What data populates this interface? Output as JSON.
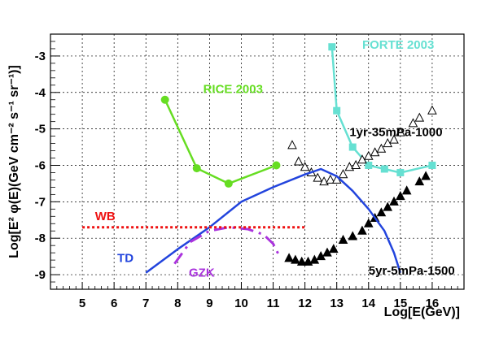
{
  "chart_data": {
    "type": "line",
    "title": "",
    "xlabel": "Log[E(GeV)]",
    "ylabel": "Log[E² φ(E)(GeV cm⁻² s⁻¹ sr⁻¹)]",
    "xlim": [
      4,
      17
    ],
    "ylim": [
      -9.4,
      -2.4
    ],
    "x_ticks": [
      5,
      6,
      7,
      8,
      9,
      10,
      11,
      12,
      13,
      14,
      15,
      16
    ],
    "y_ticks": [
      -9,
      -8,
      -7,
      -6,
      -5,
      -4,
      -3
    ],
    "grid": true,
    "series": [
      {
        "name": "RICE 2003",
        "color": "#66dd22",
        "marker": "circle",
        "style": "solid",
        "label_xy": [
          8.8,
          -4.02
        ],
        "points": [
          [
            7.6,
            -4.2
          ],
          [
            8.6,
            -6.08
          ],
          [
            9.6,
            -6.5
          ],
          [
            11.1,
            -6.0
          ]
        ]
      },
      {
        "name": "FORTE 2003",
        "color": "#66e0d2",
        "marker": "square",
        "style": "solid",
        "label_xy": [
          13.8,
          -2.8
        ],
        "points": [
          [
            12.85,
            -2.75
          ],
          [
            13.0,
            -4.5
          ],
          [
            13.5,
            -5.5
          ],
          [
            14.0,
            -6.0
          ],
          [
            14.5,
            -6.1
          ],
          [
            15.0,
            -6.2
          ],
          [
            16.0,
            -6.0
          ]
        ]
      },
      {
        "name": "1yr-35mPa-1000",
        "color": "#000000",
        "marker": "open-triangle",
        "style": "none",
        "label_xy": [
          13.4,
          -5.2
        ],
        "points": [
          [
            11.6,
            -5.45
          ],
          [
            11.8,
            -5.9
          ],
          [
            12.0,
            -6.05
          ],
          [
            12.2,
            -6.2
          ],
          [
            12.4,
            -6.35
          ],
          [
            12.6,
            -6.45
          ],
          [
            12.8,
            -6.4
          ],
          [
            13.0,
            -6.4
          ],
          [
            13.2,
            -6.25
          ],
          [
            13.4,
            -6.05
          ],
          [
            13.6,
            -6.0
          ],
          [
            13.8,
            -5.85
          ],
          [
            14.0,
            -5.75
          ],
          [
            14.2,
            -5.65
          ],
          [
            14.4,
            -5.55
          ],
          [
            14.6,
            -5.4
          ],
          [
            14.8,
            -5.3
          ],
          [
            15.0,
            -5.1
          ],
          [
            15.4,
            -4.85
          ],
          [
            15.6,
            -4.7
          ],
          [
            16.0,
            -4.5
          ]
        ]
      },
      {
        "name": "5yr-5mPa-1500",
        "color": "#000000",
        "marker": "filled-triangle",
        "style": "none",
        "label_xy": [
          14.0,
          -9.0
        ],
        "points": [
          [
            11.5,
            -8.55
          ],
          [
            11.7,
            -8.6
          ],
          [
            11.9,
            -8.65
          ],
          [
            12.1,
            -8.65
          ],
          [
            12.3,
            -8.6
          ],
          [
            12.5,
            -8.5
          ],
          [
            12.7,
            -8.4
          ],
          [
            12.9,
            -8.3
          ],
          [
            13.2,
            -8.05
          ],
          [
            13.5,
            -7.95
          ],
          [
            13.8,
            -7.8
          ],
          [
            14.0,
            -7.6
          ],
          [
            14.2,
            -7.45
          ],
          [
            14.4,
            -7.3
          ],
          [
            14.6,
            -7.15
          ],
          [
            14.8,
            -7.0
          ],
          [
            15.0,
            -6.85
          ],
          [
            15.2,
            -6.7
          ],
          [
            15.6,
            -6.45
          ],
          [
            15.8,
            -6.3
          ]
        ]
      },
      {
        "name": "TD",
        "color": "#2244dd",
        "marker": "none",
        "style": "solid",
        "label_xy": [
          6.1,
          -8.65
        ],
        "points": [
          [
            7.0,
            -8.95
          ],
          [
            8.0,
            -8.3
          ],
          [
            9.0,
            -7.7
          ],
          [
            10.0,
            -7.0
          ],
          [
            11.0,
            -6.6
          ],
          [
            12.0,
            -6.25
          ],
          [
            12.5,
            -6.1
          ],
          [
            13.0,
            -6.3
          ],
          [
            13.5,
            -6.7
          ],
          [
            14.0,
            -7.2
          ],
          [
            14.5,
            -7.8
          ],
          [
            14.8,
            -8.4
          ],
          [
            15.0,
            -8.95
          ]
        ]
      },
      {
        "name": "GZK",
        "color": "#aa33dd",
        "marker": "none",
        "style": "dashdot",
        "label_xy": [
          8.35,
          -9.05
        ],
        "points": [
          [
            7.9,
            -8.7
          ],
          [
            8.4,
            -8.1
          ],
          [
            9.0,
            -7.8
          ],
          [
            9.6,
            -7.7
          ],
          [
            10.2,
            -7.75
          ],
          [
            10.7,
            -7.9
          ],
          [
            11.0,
            -8.15
          ],
          [
            11.2,
            -8.5
          ]
        ]
      },
      {
        "name": "WB",
        "color": "#ee1111",
        "marker": "none",
        "style": "dotted",
        "label_xy": [
          5.4,
          -7.5
        ],
        "points": [
          [
            5.0,
            -7.7
          ],
          [
            12.0,
            -7.7
          ]
        ]
      }
    ]
  }
}
